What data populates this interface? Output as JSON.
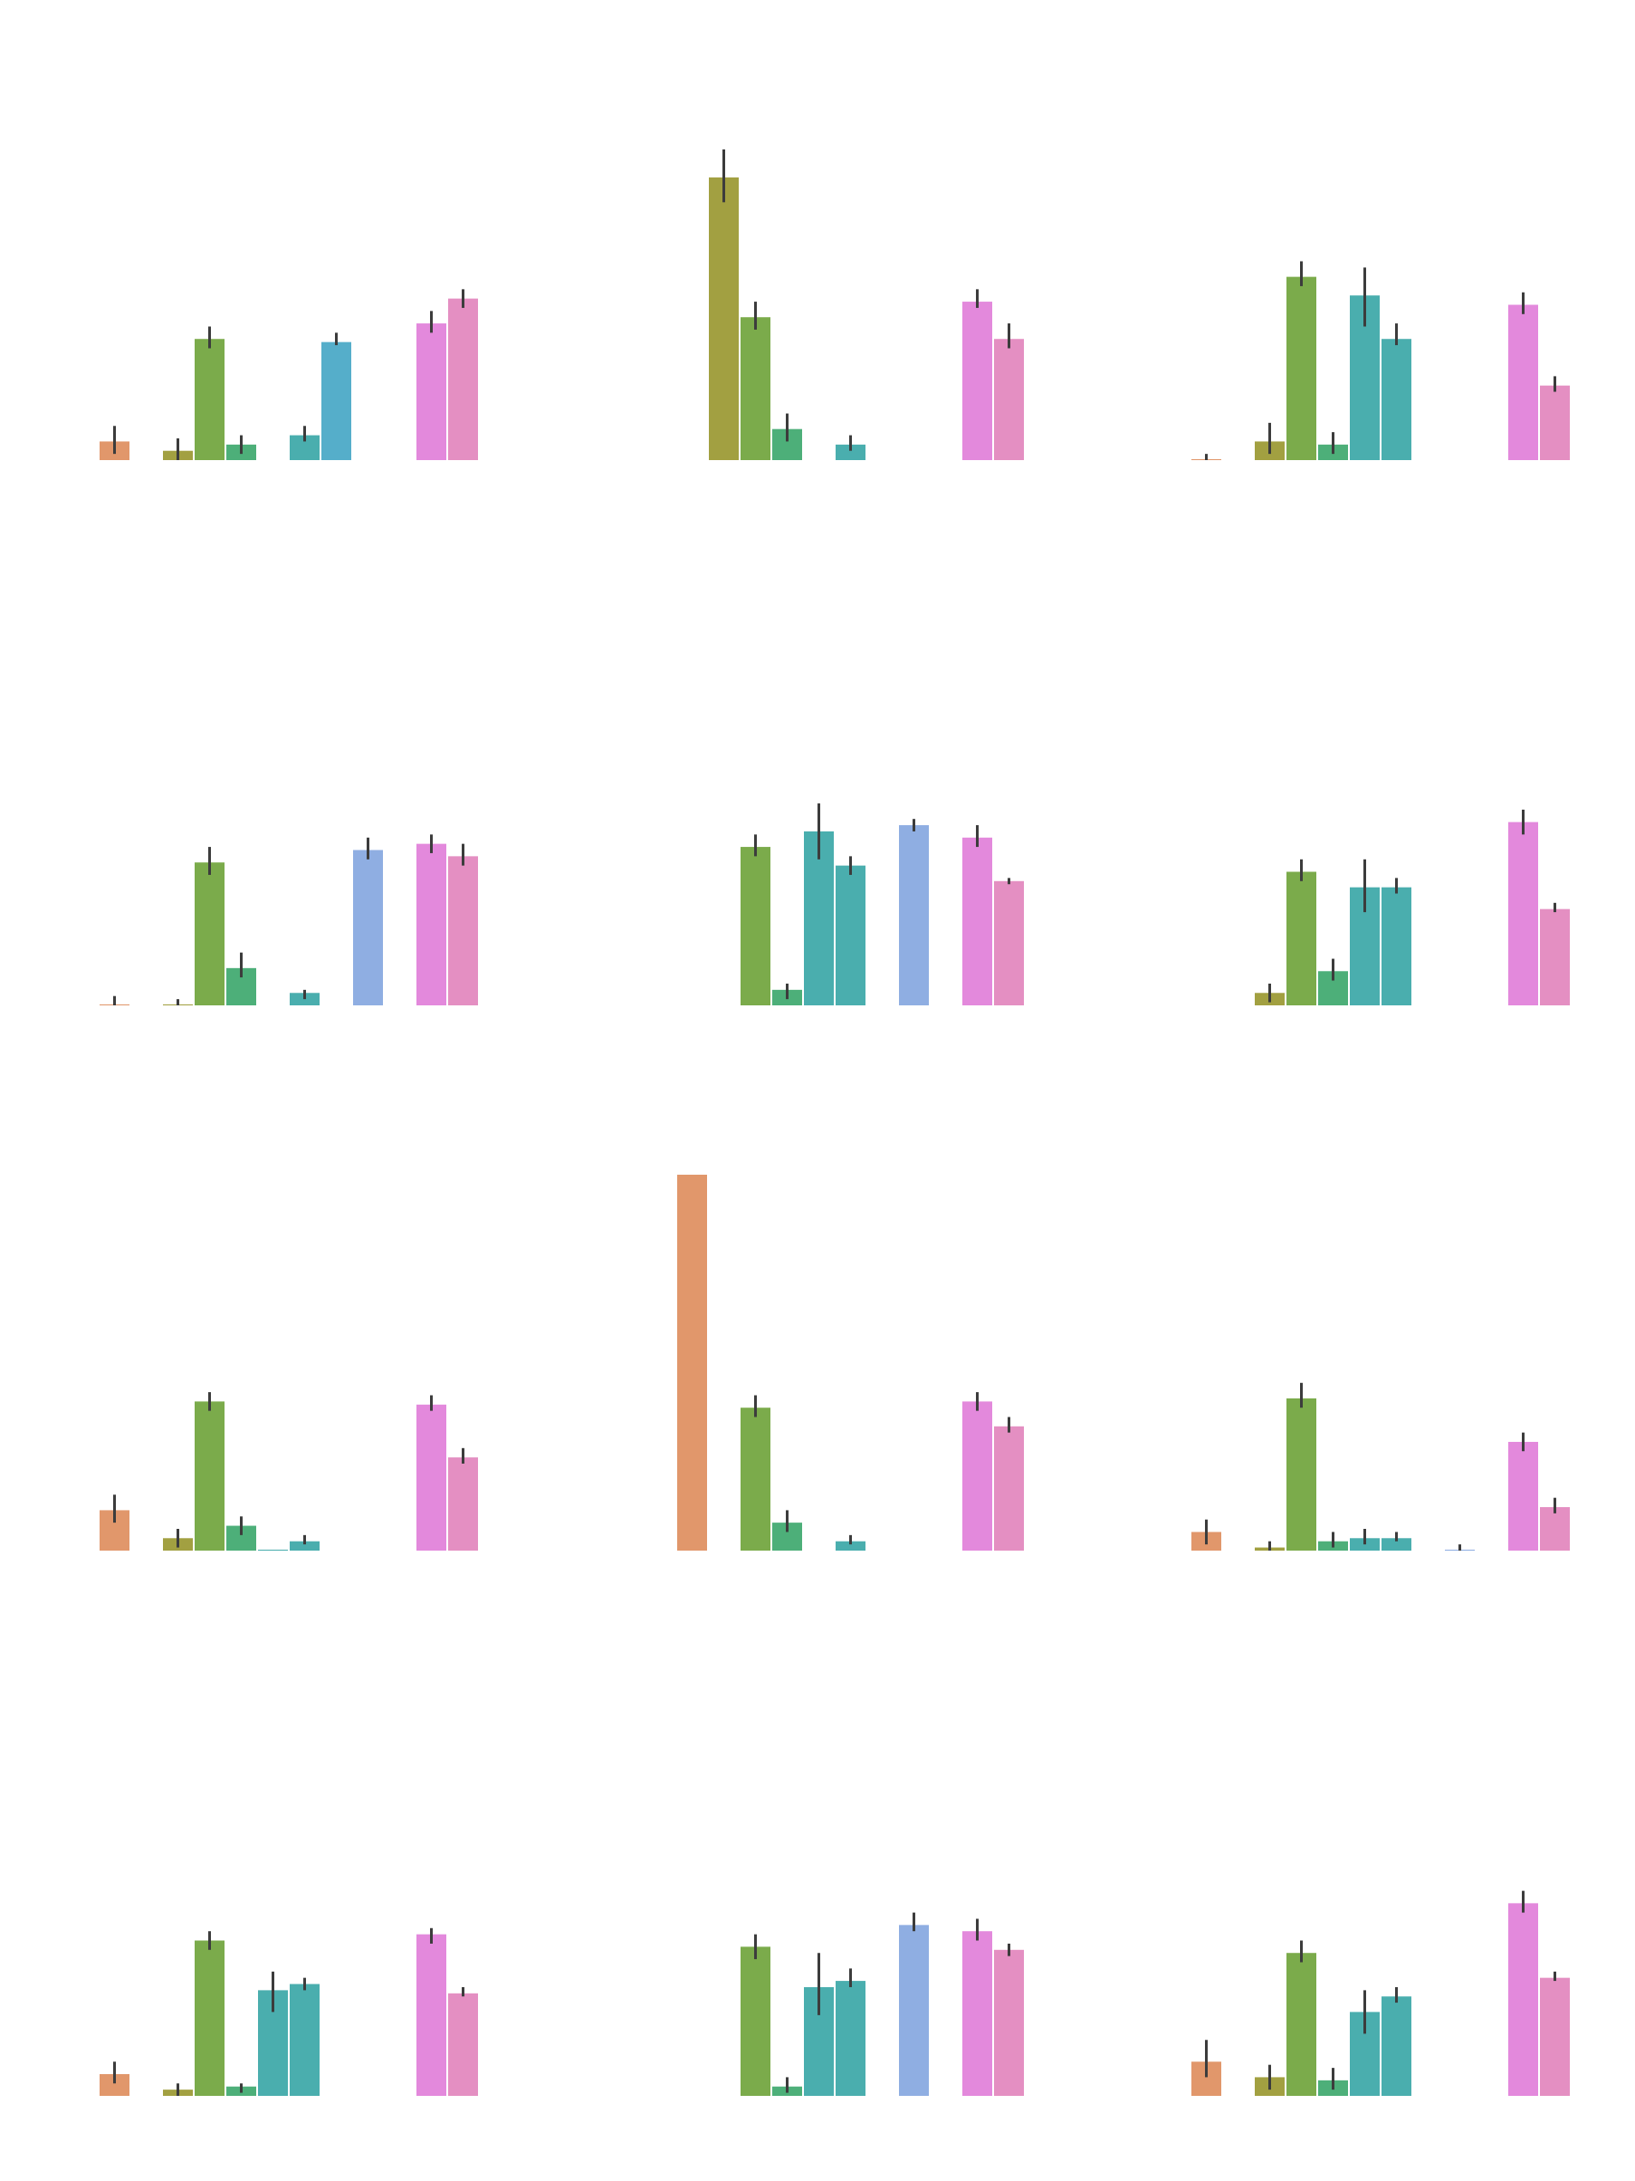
{
  "colors": {
    "c0": "#e1976b",
    "c1": "#a2a041",
    "c2": "#7bab4b",
    "c3": "#4daf79",
    "c4": "#4aaeae",
    "c5": "#55aeca",
    "c6": "#8faee2",
    "c7": "#e389dc",
    "c8": "#e48fc2",
    "errorbar": "#3c3c3c"
  },
  "chart_data": [
    {
      "type": "bar",
      "panel": "row1-col1",
      "bars": [
        {
          "x": 0,
          "value": 0.06,
          "err": [
            0.02,
            0.11
          ],
          "color": "c0"
        },
        {
          "x": 2,
          "value": 0.03,
          "err": [
            0.0,
            0.07
          ],
          "color": "c1"
        },
        {
          "x": 3,
          "value": 0.39,
          "err": [
            0.36,
            0.43
          ],
          "color": "c2"
        },
        {
          "x": 4,
          "value": 0.05,
          "err": [
            0.02,
            0.08
          ],
          "color": "c3"
        },
        {
          "x": 6,
          "value": 0.08,
          "err": [
            0.06,
            0.11
          ],
          "color": "c4"
        },
        {
          "x": 7,
          "value": 0.38,
          "err": [
            0.37,
            0.41
          ],
          "color": "c5"
        },
        {
          "x": 10,
          "value": 0.44,
          "err": [
            0.41,
            0.48
          ],
          "color": "c7"
        },
        {
          "x": 11,
          "value": 0.52,
          "err": [
            0.49,
            0.55
          ],
          "color": "c8"
        }
      ]
    },
    {
      "type": "bar",
      "panel": "row1-col2",
      "bars": [
        {
          "x": 2,
          "value": 0.91,
          "err": [
            0.83,
            1.0
          ],
          "color": "c1"
        },
        {
          "x": 3,
          "value": 0.46,
          "err": [
            0.42,
            0.51
          ],
          "color": "c2"
        },
        {
          "x": 4,
          "value": 0.1,
          "err": [
            0.06,
            0.15
          ],
          "color": "c3"
        },
        {
          "x": 6,
          "value": 0.05,
          "err": [
            0.03,
            0.08
          ],
          "color": "c4"
        },
        {
          "x": 10,
          "value": 0.51,
          "err": [
            0.49,
            0.55
          ],
          "color": "c7"
        },
        {
          "x": 11,
          "value": 0.39,
          "err": [
            0.36,
            0.44
          ],
          "color": "c8"
        }
      ]
    },
    {
      "type": "bar",
      "panel": "row1-col3",
      "bars": [
        {
          "x": 0,
          "value": 0.003,
          "err": [
            0.0,
            0.02
          ],
          "color": "c0"
        },
        {
          "x": 2,
          "value": 0.06,
          "err": [
            0.02,
            0.12
          ],
          "color": "c1"
        },
        {
          "x": 3,
          "value": 0.59,
          "err": [
            0.56,
            0.64
          ],
          "color": "c2"
        },
        {
          "x": 4,
          "value": 0.05,
          "err": [
            0.02,
            0.09
          ],
          "color": "c3"
        },
        {
          "x": 5,
          "value": 0.53,
          "err": [
            0.43,
            0.62
          ],
          "color": "c4"
        },
        {
          "x": 6,
          "value": 0.39,
          "err": [
            0.37,
            0.44
          ],
          "color": "c4"
        },
        {
          "x": 10,
          "value": 0.5,
          "err": [
            0.47,
            0.54
          ],
          "color": "c7"
        },
        {
          "x": 11,
          "value": 0.24,
          "err": [
            0.22,
            0.27
          ],
          "color": "c8"
        }
      ]
    },
    {
      "type": "bar",
      "panel": "row2-col1",
      "bars": [
        {
          "x": 0,
          "value": 0.003,
          "err": [
            0.0,
            0.03
          ],
          "color": "c0"
        },
        {
          "x": 2,
          "value": 0.003,
          "err": [
            0.0,
            0.02
          ],
          "color": "c1"
        },
        {
          "x": 3,
          "value": 0.46,
          "err": [
            0.42,
            0.51
          ],
          "color": "c2"
        },
        {
          "x": 4,
          "value": 0.12,
          "err": [
            0.09,
            0.17
          ],
          "color": "c3"
        },
        {
          "x": 6,
          "value": 0.04,
          "err": [
            0.02,
            0.05
          ],
          "color": "c4"
        },
        {
          "x": 8,
          "value": 0.5,
          "err": [
            0.47,
            0.54
          ],
          "color": "c6"
        },
        {
          "x": 10,
          "value": 0.52,
          "err": [
            0.49,
            0.55
          ],
          "color": "c7"
        },
        {
          "x": 11,
          "value": 0.48,
          "err": [
            0.45,
            0.52
          ],
          "color": "c8"
        }
      ]
    },
    {
      "type": "bar",
      "panel": "row2-col2",
      "bars": [
        {
          "x": 3,
          "value": 0.51,
          "err": [
            0.48,
            0.55
          ],
          "color": "c2"
        },
        {
          "x": 4,
          "value": 0.05,
          "err": [
            0.02,
            0.07
          ],
          "color": "c3"
        },
        {
          "x": 5,
          "value": 0.56,
          "err": [
            0.47,
            0.65
          ],
          "color": "c4"
        },
        {
          "x": 6,
          "value": 0.45,
          "err": [
            0.42,
            0.48
          ],
          "color": "c4"
        },
        {
          "x": 8,
          "value": 0.58,
          "err": [
            0.56,
            0.6
          ],
          "color": "c6"
        },
        {
          "x": 10,
          "value": 0.54,
          "err": [
            0.51,
            0.58
          ],
          "color": "c7"
        },
        {
          "x": 11,
          "value": 0.4,
          "err": [
            0.39,
            0.41
          ],
          "color": "c8"
        }
      ]
    },
    {
      "type": "bar",
      "panel": "row2-col3",
      "bars": [
        {
          "x": 2,
          "value": 0.04,
          "err": [
            0.01,
            0.07
          ],
          "color": "c1"
        },
        {
          "x": 3,
          "value": 0.43,
          "err": [
            0.4,
            0.47
          ],
          "color": "c2"
        },
        {
          "x": 4,
          "value": 0.11,
          "err": [
            0.08,
            0.15
          ],
          "color": "c3"
        },
        {
          "x": 5,
          "value": 0.38,
          "err": [
            0.3,
            0.47
          ],
          "color": "c4"
        },
        {
          "x": 6,
          "value": 0.38,
          "err": [
            0.36,
            0.41
          ],
          "color": "c4"
        },
        {
          "x": 10,
          "value": 0.59,
          "err": [
            0.55,
            0.63
          ],
          "color": "c7"
        },
        {
          "x": 11,
          "value": 0.31,
          "err": [
            0.3,
            0.33
          ],
          "color": "c8"
        }
      ]
    },
    {
      "type": "bar",
      "panel": "row3-col1",
      "bars": [
        {
          "x": 0,
          "value": 0.13,
          "err": [
            0.09,
            0.18
          ],
          "color": "c0"
        },
        {
          "x": 2,
          "value": 0.04,
          "err": [
            0.01,
            0.07
          ],
          "color": "c1"
        },
        {
          "x": 3,
          "value": 0.48,
          "err": [
            0.45,
            0.51
          ],
          "color": "c2"
        },
        {
          "x": 4,
          "value": 0.08,
          "err": [
            0.05,
            0.11
          ],
          "color": "c3"
        },
        {
          "x": 5,
          "value": 0.003,
          "err": [
            0.0,
            0.0
          ],
          "color": "c4"
        },
        {
          "x": 6,
          "value": 0.03,
          "err": [
            0.02,
            0.05
          ],
          "color": "c4"
        },
        {
          "x": 10,
          "value": 0.47,
          "err": [
            0.45,
            0.5
          ],
          "color": "c7"
        },
        {
          "x": 11,
          "value": 0.3,
          "err": [
            0.28,
            0.33
          ],
          "color": "c8"
        }
      ]
    },
    {
      "type": "bar",
      "panel": "row3-col2",
      "bars": [
        {
          "x": 1,
          "value": 1.21,
          "err": null,
          "color": "c0"
        },
        {
          "x": 3,
          "value": 0.46,
          "err": [
            0.43,
            0.5
          ],
          "color": "c2"
        },
        {
          "x": 4,
          "value": 0.09,
          "err": [
            0.06,
            0.13
          ],
          "color": "c3"
        },
        {
          "x": 6,
          "value": 0.03,
          "err": [
            0.02,
            0.05
          ],
          "color": "c4"
        },
        {
          "x": 10,
          "value": 0.48,
          "err": [
            0.45,
            0.51
          ],
          "color": "c7"
        },
        {
          "x": 11,
          "value": 0.4,
          "err": [
            0.38,
            0.43
          ],
          "color": "c8"
        }
      ]
    },
    {
      "type": "bar",
      "panel": "row3-col3",
      "bars": [
        {
          "x": 0,
          "value": 0.06,
          "err": [
            0.02,
            0.1
          ],
          "color": "c0"
        },
        {
          "x": 2,
          "value": 0.01,
          "err": [
            0.0,
            0.03
          ],
          "color": "c1"
        },
        {
          "x": 3,
          "value": 0.49,
          "err": [
            0.46,
            0.54
          ],
          "color": "c2"
        },
        {
          "x": 4,
          "value": 0.03,
          "err": [
            0.01,
            0.06
          ],
          "color": "c3"
        },
        {
          "x": 5,
          "value": 0.04,
          "err": [
            0.02,
            0.07
          ],
          "color": "c4"
        },
        {
          "x": 6,
          "value": 0.04,
          "err": [
            0.03,
            0.06
          ],
          "color": "c4"
        },
        {
          "x": 8,
          "value": 0.003,
          "err": [
            0.0,
            0.02
          ],
          "color": "c6"
        },
        {
          "x": 10,
          "value": 0.35,
          "err": [
            0.32,
            0.38
          ],
          "color": "c7"
        },
        {
          "x": 11,
          "value": 0.14,
          "err": [
            0.12,
            0.17
          ],
          "color": "c8"
        }
      ]
    },
    {
      "type": "bar",
      "panel": "row4-col1",
      "bars": [
        {
          "x": 0,
          "value": 0.07,
          "err": [
            0.04,
            0.11
          ],
          "color": "c0"
        },
        {
          "x": 2,
          "value": 0.02,
          "err": [
            0.0,
            0.04
          ],
          "color": "c1"
        },
        {
          "x": 3,
          "value": 0.5,
          "err": [
            0.47,
            0.53
          ],
          "color": "c2"
        },
        {
          "x": 4,
          "value": 0.03,
          "err": [
            0.01,
            0.04
          ],
          "color": "c3"
        },
        {
          "x": 5,
          "value": 0.34,
          "err": [
            0.27,
            0.4
          ],
          "color": "c4"
        },
        {
          "x": 6,
          "value": 0.36,
          "err": [
            0.34,
            0.38
          ],
          "color": "c4"
        },
        {
          "x": 10,
          "value": 0.52,
          "err": [
            0.49,
            0.54
          ],
          "color": "c7"
        },
        {
          "x": 11,
          "value": 0.33,
          "err": [
            0.32,
            0.35
          ],
          "color": "c8"
        }
      ]
    },
    {
      "type": "bar",
      "panel": "row4-col2",
      "bars": [
        {
          "x": 3,
          "value": 0.48,
          "err": [
            0.44,
            0.52
          ],
          "color": "c2"
        },
        {
          "x": 4,
          "value": 0.03,
          "err": [
            0.01,
            0.06
          ],
          "color": "c3"
        },
        {
          "x": 5,
          "value": 0.35,
          "err": [
            0.26,
            0.46
          ],
          "color": "c4"
        },
        {
          "x": 6,
          "value": 0.37,
          "err": [
            0.35,
            0.41
          ],
          "color": "c4"
        },
        {
          "x": 8,
          "value": 0.55,
          "err": [
            0.53,
            0.59
          ],
          "color": "c6"
        },
        {
          "x": 10,
          "value": 0.53,
          "err": [
            0.5,
            0.57
          ],
          "color": "c7"
        },
        {
          "x": 11,
          "value": 0.47,
          "err": [
            0.45,
            0.49
          ],
          "color": "c8"
        }
      ]
    },
    {
      "type": "bar",
      "panel": "row4-col3",
      "bars": [
        {
          "x": 0,
          "value": 0.11,
          "err": [
            0.06,
            0.18
          ],
          "color": "c0"
        },
        {
          "x": 2,
          "value": 0.06,
          "err": [
            0.02,
            0.1
          ],
          "color": "c1"
        },
        {
          "x": 3,
          "value": 0.46,
          "err": [
            0.43,
            0.5
          ],
          "color": "c2"
        },
        {
          "x": 4,
          "value": 0.05,
          "err": [
            0.02,
            0.09
          ],
          "color": "c3"
        },
        {
          "x": 5,
          "value": 0.27,
          "err": [
            0.2,
            0.34
          ],
          "color": "c4"
        },
        {
          "x": 6,
          "value": 0.32,
          "err": [
            0.3,
            0.35
          ],
          "color": "c4"
        },
        {
          "x": 10,
          "value": 0.62,
          "err": [
            0.59,
            0.66
          ],
          "color": "c7"
        },
        {
          "x": 11,
          "value": 0.38,
          "err": [
            0.37,
            0.4
          ],
          "color": "c8"
        }
      ]
    }
  ]
}
